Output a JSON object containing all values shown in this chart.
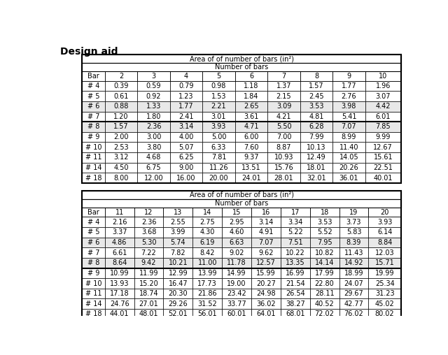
{
  "title": "Design aid",
  "table1": {
    "header1": "Area of of number of bars (in²)",
    "header2": "Number of bars",
    "col_headers": [
      "Bar",
      "2",
      "3",
      "4",
      "5",
      "6",
      "7",
      "8",
      "9",
      "10"
    ],
    "rows": [
      [
        "# 4",
        "0.39",
        "0.59",
        "0.79",
        "0.98",
        "1.18",
        "1.37",
        "1.57",
        "1.77",
        "1.96"
      ],
      [
        "# 5",
        "0.61",
        "0.92",
        "1.23",
        "1.53",
        "1.84",
        "2.15",
        "2.45",
        "2.76",
        "3.07"
      ],
      [
        "# 6",
        "0.88",
        "1.33",
        "1.77",
        "2.21",
        "2.65",
        "3.09",
        "3.53",
        "3.98",
        "4.42"
      ],
      [
        "# 7",
        "1.20",
        "1.80",
        "2.41",
        "3.01",
        "3.61",
        "4.21",
        "4.81",
        "5.41",
        "6.01"
      ],
      [
        "# 8",
        "1.57",
        "2.36",
        "3.14",
        "3.93",
        "4.71",
        "5.50",
        "6.28",
        "7.07",
        "7.85"
      ],
      [
        "# 9",
        "2.00",
        "3.00",
        "4.00",
        "5.00",
        "6.00",
        "7.00",
        "7.99",
        "8.99",
        "9.99"
      ],
      [
        "# 10",
        "2.53",
        "3.80",
        "5.07",
        "6.33",
        "7.60",
        "8.87",
        "10.13",
        "11.40",
        "12.67"
      ],
      [
        "# 11",
        "3.12",
        "4.68",
        "6.25",
        "7.81",
        "9.37",
        "10.93",
        "12.49",
        "14.05",
        "15.61"
      ],
      [
        "# 14",
        "4.50",
        "6.75",
        "9.00",
        "11.26",
        "13.51",
        "15.76",
        "18.01",
        "20.26",
        "22.51"
      ],
      [
        "# 18",
        "8.00",
        "12.00",
        "16.00",
        "20.00",
        "24.01",
        "28.01",
        "32.01",
        "36.01",
        "40.01"
      ]
    ],
    "separator_after_row": 4
  },
  "table2": {
    "header1": "Area of of number of bars (in²)",
    "header2": "Number of bars",
    "col_headers": [
      "Bar",
      "11",
      "12",
      "13",
      "14",
      "15",
      "16",
      "17",
      "18",
      "19",
      "20"
    ],
    "rows": [
      [
        "# 4",
        "2.16",
        "2.36",
        "2.55",
        "2.75",
        "2.95",
        "3.14",
        "3.34",
        "3.53",
        "3.73",
        "3.93"
      ],
      [
        "# 5",
        "3.37",
        "3.68",
        "3.99",
        "4.30",
        "4.60",
        "4.91",
        "5.22",
        "5.52",
        "5.83",
        "6.14"
      ],
      [
        "# 6",
        "4.86",
        "5.30",
        "5.74",
        "6.19",
        "6.63",
        "7.07",
        "7.51",
        "7.95",
        "8.39",
        "8.84"
      ],
      [
        "# 7",
        "6.61",
        "7.22",
        "7.82",
        "8.42",
        "9.02",
        "9.62",
        "10.22",
        "10.82",
        "11.43",
        "12.03"
      ],
      [
        "# 8",
        "8.64",
        "9.42",
        "10.21",
        "11.00",
        "11.78",
        "12.57",
        "13.35",
        "14.14",
        "14.92",
        "15.71"
      ],
      [
        "# 9",
        "10.99",
        "11.99",
        "12.99",
        "13.99",
        "14.99",
        "15.99",
        "16.99",
        "17.99",
        "18.99",
        "19.99"
      ],
      [
        "# 10",
        "13.93",
        "15.20",
        "16.47",
        "17.73",
        "19.00",
        "20.27",
        "21.54",
        "22.80",
        "24.07",
        "25.34"
      ],
      [
        "# 11",
        "17.18",
        "18.74",
        "20.30",
        "21.86",
        "23.42",
        "24.98",
        "26.54",
        "28.11",
        "29.67",
        "31.23"
      ],
      [
        "# 14",
        "24.76",
        "27.01",
        "29.26",
        "31.52",
        "33.77",
        "36.02",
        "38.27",
        "40.52",
        "42.77",
        "45.02"
      ],
      [
        "# 18",
        "44.01",
        "48.01",
        "52.01",
        "56.01",
        "60.01",
        "64.01",
        "68.01",
        "72.02",
        "76.02",
        "80.02"
      ]
    ],
    "separator_after_row": 5
  },
  "bg_color": "#ffffff",
  "border_color": "#000000",
  "alt_row_color": "#e8e8e8",
  "title_fontsize": 10,
  "cell_fontsize": 7,
  "header_fontsize": 7.5
}
